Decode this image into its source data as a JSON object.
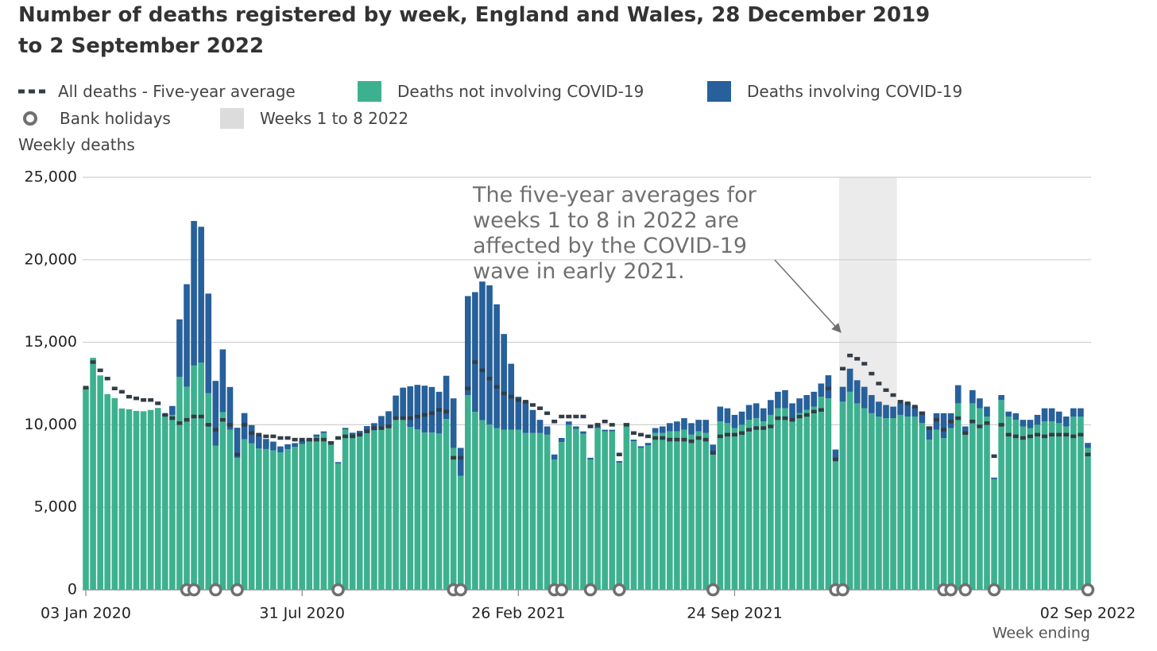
{
  "chart_data": {
    "type": "stacked_bar",
    "title": "Number of deaths registered by week, England and Wales, 28 December 2019 to 2 September 2022",
    "y_label": "Weekly deaths",
    "x_label": "Week ending",
    "annotation": [
      "The five-year averages for",
      "weeks 1 to 8 in 2022 are",
      "affected by the COVID-19",
      "wave in early 2021."
    ],
    "xlim": [
      "2020-01-03",
      "2022-09-02"
    ],
    "xticks": [
      {
        "value": "2020-01-03",
        "label": "03 Jan 2020"
      },
      {
        "value": "2020-07-31",
        "label": "31 Jul 2020"
      },
      {
        "value": "2021-02-26",
        "label": "26 Feb 2021"
      },
      {
        "value": "2021-09-24",
        "label": "24 Sep 2021"
      },
      {
        "value": "2022-09-02",
        "label": "02 Sep 2022"
      }
    ],
    "ylim": [
      0,
      25000
    ],
    "yticks": [
      0,
      {
        "value": 5000,
        "label": "5,000"
      },
      {
        "value": 10000,
        "label": "10,000"
      },
      {
        "value": 15000,
        "label": "15,000"
      },
      {
        "value": 20000,
        "label": "20,000"
      },
      {
        "value": 25000,
        "label": "25,000"
      }
    ],
    "grid": true,
    "x": [
      "2020-01-03",
      "2020-01-10",
      "2020-01-17",
      "2020-01-24",
      "2020-01-31",
      "2020-02-07",
      "2020-02-14",
      "2020-02-21",
      "2020-02-28",
      "2020-03-06",
      "2020-03-13",
      "2020-03-20",
      "2020-03-27",
      "2020-04-03",
      "2020-04-10",
      "2020-04-17",
      "2020-04-24",
      "2020-05-01",
      "2020-05-08",
      "2020-05-15",
      "2020-05-22",
      "2020-05-29",
      "2020-06-05",
      "2020-06-12",
      "2020-06-19",
      "2020-06-26",
      "2020-07-03",
      "2020-07-10",
      "2020-07-17",
      "2020-07-24",
      "2020-07-31",
      "2020-08-07",
      "2020-08-14",
      "2020-08-21",
      "2020-08-28",
      "2020-09-04",
      "2020-09-11",
      "2020-09-18",
      "2020-09-25",
      "2020-10-02",
      "2020-10-09",
      "2020-10-16",
      "2020-10-23",
      "2020-10-30",
      "2020-11-06",
      "2020-11-13",
      "2020-11-20",
      "2020-11-27",
      "2020-12-04",
      "2020-12-11",
      "2020-12-18",
      "2020-12-25",
      "2021-01-01",
      "2021-01-08",
      "2021-01-15",
      "2021-01-22",
      "2021-01-29",
      "2021-02-05",
      "2021-02-12",
      "2021-02-19",
      "2021-02-26",
      "2021-03-05",
      "2021-03-12",
      "2021-03-19",
      "2021-03-26",
      "2021-04-02",
      "2021-04-09",
      "2021-04-16",
      "2021-04-23",
      "2021-04-30",
      "2021-05-07",
      "2021-05-14",
      "2021-05-21",
      "2021-05-28",
      "2021-06-04",
      "2021-06-11",
      "2021-06-18",
      "2021-06-25",
      "2021-07-02",
      "2021-07-09",
      "2021-07-16",
      "2021-07-23",
      "2021-07-30",
      "2021-08-06",
      "2021-08-13",
      "2021-08-20",
      "2021-08-27",
      "2021-09-03",
      "2021-09-10",
      "2021-09-17",
      "2021-09-24",
      "2021-10-01",
      "2021-10-08",
      "2021-10-15",
      "2021-10-22",
      "2021-10-29",
      "2021-11-05",
      "2021-11-12",
      "2021-11-19",
      "2021-11-26",
      "2021-12-03",
      "2021-12-10",
      "2021-12-17",
      "2021-12-24",
      "2021-12-31",
      "2022-01-07",
      "2022-01-14",
      "2022-01-21",
      "2022-01-28",
      "2022-02-04",
      "2022-02-11",
      "2022-02-18",
      "2022-02-25",
      "2022-03-04",
      "2022-03-11",
      "2022-03-18",
      "2022-03-25",
      "2022-04-01",
      "2022-04-08",
      "2022-04-15",
      "2022-04-22",
      "2022-04-29",
      "2022-05-06",
      "2022-05-13",
      "2022-05-20",
      "2022-05-27",
      "2022-06-03",
      "2022-06-10",
      "2022-06-17",
      "2022-06-24",
      "2022-07-01",
      "2022-07-08",
      "2022-07-15",
      "2022-07-22",
      "2022-07-29",
      "2022-08-05",
      "2022-08-12",
      "2022-08-19",
      "2022-08-26",
      "2022-09-02"
    ],
    "series": [
      {
        "name": "Deaths not involving COVID-19",
        "color": "#3db18f",
        "values": [
          12250,
          14060,
          12990,
          11860,
          11610,
          10990,
          10940,
          10840,
          10820,
          10900,
          11020,
          10550,
          10600,
          12910,
          12310,
          13590,
          13760,
          11910,
          8730,
          10760,
          9700,
          8000,
          9120,
          8870,
          8560,
          8530,
          8450,
          8320,
          8520,
          8670,
          8840,
          8990,
          9270,
          9500,
          8900,
          7660,
          9710,
          9380,
          9410,
          9600,
          9660,
          9860,
          9840,
          10390,
          10310,
          9860,
          9720,
          9530,
          9530,
          9470,
          10350,
          8600,
          6900,
          11800,
          10790,
          10280,
          10020,
          9800,
          9700,
          9700,
          9700,
          9500,
          9500,
          9500,
          9400,
          7900,
          8950,
          10000,
          9750,
          9450,
          7900,
          9800,
          9600,
          9600,
          7700,
          10000,
          9000,
          8600,
          8750,
          9500,
          9500,
          9600,
          9600,
          9700,
          9400,
          9600,
          9500,
          8200,
          10200,
          10100,
          9800,
          10000,
          10300,
          10400,
          10200,
          10600,
          11000,
          11000,
          10400,
          10700,
          10900,
          11100,
          11700,
          11600,
          7900,
          11400,
          12000,
          11300,
          11000,
          10700,
          10500,
          10400,
          10400,
          10600,
          10500,
          10500,
          10100,
          9100,
          9700,
          9200,
          9800,
          11300,
          9400,
          11300,
          11000,
          10500,
          6700,
          11500,
          10500,
          10300,
          9900,
          9800,
          10000,
          10200,
          10200,
          10100,
          9900,
          10500,
          10500,
          8600
        ]
      },
      {
        "name": "Deaths involving COVID-19",
        "color": "#27609a",
        "values": [
          0,
          0,
          0,
          0,
          0,
          0,
          0,
          0,
          0,
          0,
          0,
          100,
          540,
          3480,
          6210,
          8760,
          8240,
          6040,
          3930,
          3810,
          2590,
          1820,
          1590,
          1110,
          780,
          610,
          530,
          370,
          300,
          220,
          190,
          150,
          140,
          100,
          100,
          80,
          100,
          140,
          220,
          320,
          440,
          670,
          980,
          1380,
          1940,
          2470,
          2700,
          2840,
          2760,
          2530,
          2620,
          3000,
          1700,
          6000,
          7250,
          8400,
          8430,
          7500,
          5800,
          4000,
          2000,
          1900,
          1400,
          800,
          500,
          300,
          250,
          200,
          150,
          150,
          100,
          100,
          100,
          100,
          100,
          100,
          100,
          100,
          150,
          300,
          400,
          500,
          600,
          700,
          700,
          700,
          800,
          600,
          900,
          900,
          800,
          800,
          900,
          900,
          800,
          900,
          1000,
          1100,
          900,
          900,
          900,
          900,
          800,
          1400,
          600,
          900,
          1400,
          1400,
          1300,
          1100,
          900,
          800,
          700,
          700,
          800,
          600,
          700,
          800,
          1000,
          1500,
          900,
          1100,
          500,
          800,
          600,
          600,
          100,
          300,
          300,
          400,
          400,
          500,
          600,
          800,
          800,
          700,
          600,
          500,
          500,
          300
        ]
      }
    ],
    "average": {
      "name": "All deaths - Five-year average",
      "color": "#333d47",
      "values": [
        12250,
        13800,
        13300,
        12800,
        12200,
        12000,
        11700,
        11600,
        11500,
        11500,
        11300,
        10600,
        10400,
        10100,
        10300,
        10500,
        10500,
        10000,
        9700,
        10300,
        10000,
        8200,
        10000,
        9500,
        9400,
        9300,
        9300,
        9200,
        9200,
        9100,
        9100,
        9100,
        9100,
        9100,
        8900,
        9200,
        9300,
        9300,
        9400,
        9600,
        9800,
        9800,
        9900,
        10400,
        10400,
        10400,
        10500,
        10600,
        10700,
        10900,
        10800,
        8000,
        8000,
        12200,
        13800,
        13300,
        12800,
        12300,
        11900,
        11700,
        11500,
        11400,
        11200,
        11000,
        10700,
        10200,
        10500,
        10500,
        10500,
        10500,
        9900,
        10000,
        10200,
        10000,
        8200,
        10000,
        9500,
        9400,
        9300,
        9200,
        9200,
        9100,
        9100,
        9100,
        9000,
        9200,
        9100,
        8300,
        9300,
        9400,
        9400,
        9500,
        9700,
        9800,
        9800,
        9900,
        10400,
        10400,
        10300,
        10500,
        10600,
        10800,
        10900,
        12200,
        7900,
        13400,
        14200,
        14000,
        13700,
        13100,
        12500,
        12100,
        11800,
        11400,
        11300,
        11100,
        10700,
        9800,
        10300,
        9700,
        10200,
        10400,
        9500,
        10200,
        9900,
        10100,
        8100,
        10000,
        9400,
        9300,
        9200,
        9300,
        9400,
        9300,
        9400,
        9400,
        9400,
        9300,
        9400,
        8200
      ]
    },
    "bank_holidays": {
      "name": "Bank holidays",
      "color": "#707070",
      "x": [
        "2020-04-10",
        "2020-04-17",
        "2020-05-08",
        "2020-05-29",
        "2020-09-04",
        "2020-12-25",
        "2021-01-01",
        "2021-04-02",
        "2021-04-09",
        "2021-05-07",
        "2021-06-04",
        "2021-09-03",
        "2021-12-31",
        "2022-01-07",
        "2022-04-15",
        "2022-04-22",
        "2022-05-06",
        "2022-06-03",
        "2022-09-02"
      ]
    },
    "highlight": {
      "name": "Weeks 1 to 8 2022",
      "color": "#ebebeb",
      "from": "2022-01-07",
      "to": "2022-02-25"
    }
  }
}
